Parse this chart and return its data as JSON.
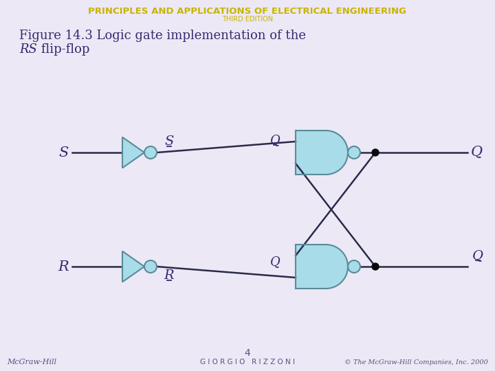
{
  "bg_color": "#ece8f5",
  "title_main": "PRINCIPLES AND APPLICATIONS OF ELECTRICAL ENGINEERING",
  "title_sub": "THIRD EDITION",
  "figure_title_line1": "Figure 14.3 Logic gate implementation of the",
  "figure_title_line2_italic": "RS",
  "figure_title_line2_normal": " flip-flop",
  "gate_fill": "#a8dce8",
  "gate_edge": "#5a8a9a",
  "wire_color": "#2a2a4a",
  "dot_color": "#0a0a0a",
  "label_color": "#3a2870",
  "header_color": "#c8b400",
  "footer_left": "McGraw-Hill",
  "footer_center": "G I O R G I O   R I Z Z O N I",
  "footer_right": "© The McGraw-Hill Companies, Inc. 2000",
  "footer_page": "4",
  "footer_color": "#5a5080"
}
